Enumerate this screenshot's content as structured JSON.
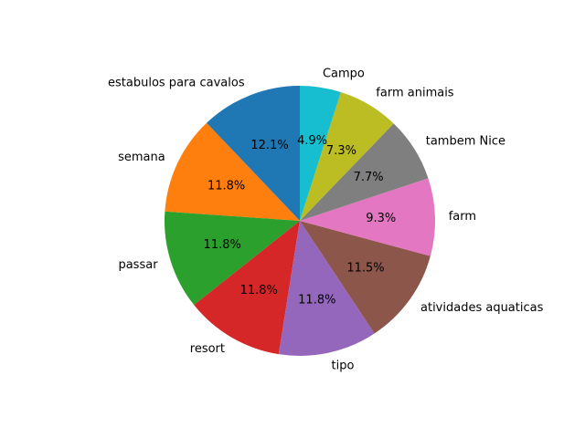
{
  "chart_data": {
    "type": "pie",
    "start_angle_deg": 90,
    "direction": "counterclockwise",
    "slices": [
      {
        "label": "estabulos para cavalos",
        "value": 12.1,
        "pct_label": "12.1%",
        "color": "#1f77b4"
      },
      {
        "label": "semana",
        "value": 11.8,
        "pct_label": "11.8%",
        "color": "#ff7f0e"
      },
      {
        "label": "passar",
        "value": 11.8,
        "pct_label": "11.8%",
        "color": "#2ca02c"
      },
      {
        "label": "resort",
        "value": 11.8,
        "pct_label": "11.8%",
        "color": "#d62728"
      },
      {
        "label": "tipo",
        "value": 11.8,
        "pct_label": "11.8%",
        "color": "#9467bd"
      },
      {
        "label": "atividades aquaticas",
        "value": 11.5,
        "pct_label": "11.5%",
        "color": "#8c564b"
      },
      {
        "label": "farm",
        "value": 9.3,
        "pct_label": "9.3%",
        "color": "#e377c2"
      },
      {
        "label": "tambem Nice",
        "value": 7.7,
        "pct_label": "7.7%",
        "color": "#7f7f7f"
      },
      {
        "label": "farm animais",
        "value": 7.3,
        "pct_label": "7.3%",
        "color": "#bcbd22"
      },
      {
        "label": "Campo",
        "value": 4.9,
        "pct_label": "4.9%",
        "color": "#17becf"
      }
    ]
  }
}
